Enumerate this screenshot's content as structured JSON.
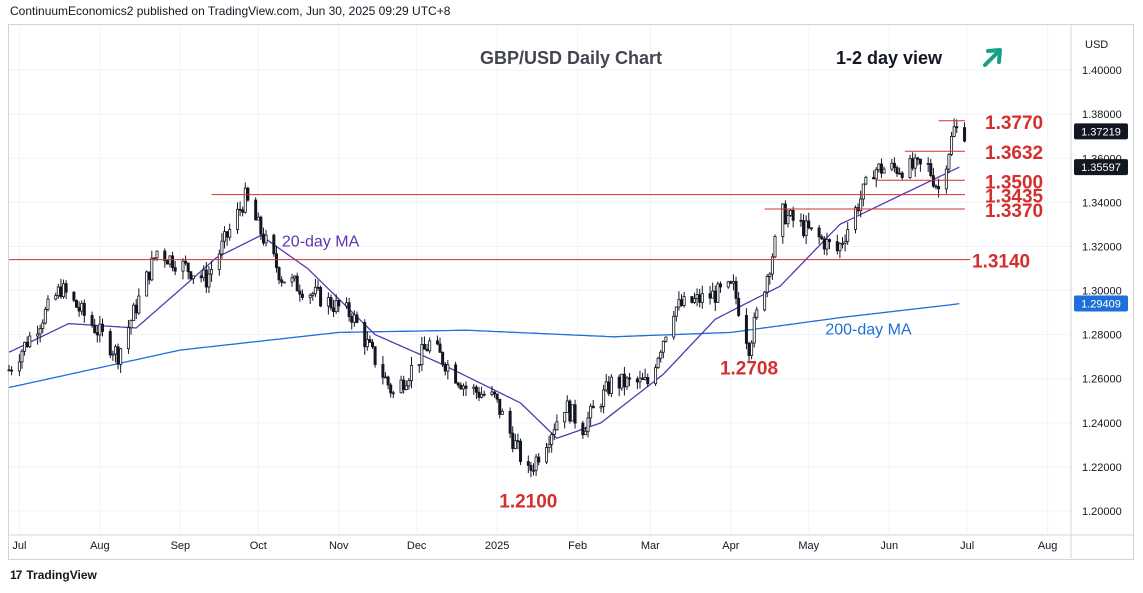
{
  "header": {
    "publisher_line": "ContinuumEconomics2 published on TradingView.com, Jun 30, 2025 09:29 UTC+8"
  },
  "footer": {
    "logo_text": "TradingView",
    "logo_mark": "17"
  },
  "colors": {
    "level": "#d32f2f",
    "ma20": "#5e35b1",
    "ma200": "#1e6fd9",
    "up": "#26a69a",
    "down": "#ef5350",
    "candle": "#131722",
    "arrow": "#16a085",
    "price_tag": "#131722"
  },
  "chart_data": {
    "type": "candlestick",
    "title": "GBP/USD Daily Chart",
    "view_label": "1-2 day view",
    "view_icon": "arrow-up-right-icon",
    "currency": "USD",
    "ylim": [
      1.19,
      1.42
    ],
    "xlim": [
      "2024-06-27",
      "2025-08-10"
    ],
    "y_ticks": [
      "1.20000",
      "1.22000",
      "1.24000",
      "1.26000",
      "1.28000",
      "1.30000",
      "1.32000",
      "1.34000",
      "1.36000",
      "1.38000",
      "1.40000"
    ],
    "x_ticks": [
      {
        "label": "Jul",
        "date": "2024-07-01"
      },
      {
        "label": "Aug",
        "date": "2024-08-01"
      },
      {
        "label": "Sep",
        "date": "2024-09-01"
      },
      {
        "label": "Oct",
        "date": "2024-10-01"
      },
      {
        "label": "Nov",
        "date": "2024-11-01"
      },
      {
        "label": "Dec",
        "date": "2024-12-01"
      },
      {
        "label": "2025",
        "date": "2025-01-01"
      },
      {
        "label": "Feb",
        "date": "2025-02-01"
      },
      {
        "label": "Mar",
        "date": "2025-03-01"
      },
      {
        "label": "Apr",
        "date": "2025-04-01"
      },
      {
        "label": "May",
        "date": "2025-05-01"
      },
      {
        "label": "Jun",
        "date": "2025-06-01"
      },
      {
        "label": "Jul",
        "date": "2025-07-01"
      },
      {
        "label": "Aug",
        "date": "2025-08-01"
      }
    ],
    "price_tags": [
      {
        "label": "1.37219",
        "value": 1.37219
      },
      {
        "label": "1.35597",
        "value": 1.35597
      },
      {
        "label": "1.29409",
        "value": 1.29409
      }
    ],
    "levels": [
      {
        "label": "1.3770",
        "value": 1.377,
        "from": "2025-06-20"
      },
      {
        "label": "1.3632",
        "value": 1.3632,
        "from": "2025-06-07"
      },
      {
        "label": "1.3500",
        "value": 1.35,
        "from": "2025-05-27"
      },
      {
        "label": "1.3435",
        "value": 1.3435,
        "from": "2024-09-13"
      },
      {
        "label": "1.3370",
        "value": 1.337,
        "from": "2025-04-14"
      },
      {
        "label": "1.3140",
        "value": 1.314,
        "from": "2024-06-27"
      }
    ],
    "annotations": [
      {
        "label": "20-day MA",
        "date": "2024-10-25",
        "value": 1.32,
        "type": "ma20"
      },
      {
        "label": "200-day MA",
        "date": "2025-05-24",
        "value": 1.28,
        "type": "ma200"
      },
      {
        "label": "1.2708",
        "date": "2025-04-08",
        "value": 1.262,
        "type": "level"
      },
      {
        "label": "1.2100",
        "date": "2025-01-13",
        "value": 1.2015,
        "type": "level"
      }
    ],
    "price_anchors": [
      [
        "2024-06-27",
        1.264
      ],
      [
        "2024-07-17",
        1.301
      ],
      [
        "2024-08-08",
        1.271
      ],
      [
        "2024-08-23",
        1.318
      ],
      [
        "2024-09-11",
        1.305
      ],
      [
        "2024-09-26",
        1.342
      ],
      [
        "2024-10-10",
        1.306
      ],
      [
        "2024-10-23",
        1.298
      ],
      [
        "2024-11-06",
        1.289
      ],
      [
        "2024-11-22",
        1.253
      ],
      [
        "2024-12-06",
        1.276
      ],
      [
        "2024-12-20",
        1.256
      ],
      [
        "2024-12-31",
        1.251
      ],
      [
        "2025-01-13",
        1.217
      ],
      [
        "2025-01-27",
        1.248
      ],
      [
        "2025-02-03",
        1.238
      ],
      [
        "2025-02-14",
        1.258
      ],
      [
        "2025-02-28",
        1.258
      ],
      [
        "2025-03-10",
        1.292
      ],
      [
        "2025-04-02",
        1.301
      ],
      [
        "2025-04-08",
        1.275
      ],
      [
        "2025-04-21",
        1.335
      ],
      [
        "2025-05-12",
        1.318
      ],
      [
        "2025-05-26",
        1.355
      ],
      [
        "2025-06-16",
        1.356
      ],
      [
        "2025-06-20",
        1.346
      ],
      [
        "2025-06-26",
        1.373
      ],
      [
        "2025-06-30",
        1.372
      ]
    ],
    "ma20_anchors": [
      [
        "2024-06-27",
        1.272
      ],
      [
        "2024-07-20",
        1.285
      ],
      [
        "2024-08-15",
        1.283
      ],
      [
        "2024-09-15",
        1.315
      ],
      [
        "2024-10-02",
        1.325
      ],
      [
        "2024-10-20",
        1.31
      ],
      [
        "2024-11-15",
        1.28
      ],
      [
        "2024-12-10",
        1.267
      ],
      [
        "2025-01-10",
        1.249
      ],
      [
        "2025-01-24",
        1.233
      ],
      [
        "2025-02-10",
        1.24
      ],
      [
        "2025-03-06",
        1.262
      ],
      [
        "2025-03-26",
        1.287
      ],
      [
        "2025-04-20",
        1.302
      ],
      [
        "2025-05-13",
        1.33
      ],
      [
        "2025-06-05",
        1.343
      ],
      [
        "2025-06-28",
        1.356
      ]
    ],
    "ma200_anchors": [
      [
        "2024-06-27",
        1.256
      ],
      [
        "2024-09-01",
        1.273
      ],
      [
        "2024-11-01",
        1.281
      ],
      [
        "2024-12-20",
        1.282
      ],
      [
        "2025-02-15",
        1.279
      ],
      [
        "2025-04-01",
        1.281
      ],
      [
        "2025-05-15",
        1.288
      ],
      [
        "2025-06-28",
        1.294
      ]
    ]
  }
}
